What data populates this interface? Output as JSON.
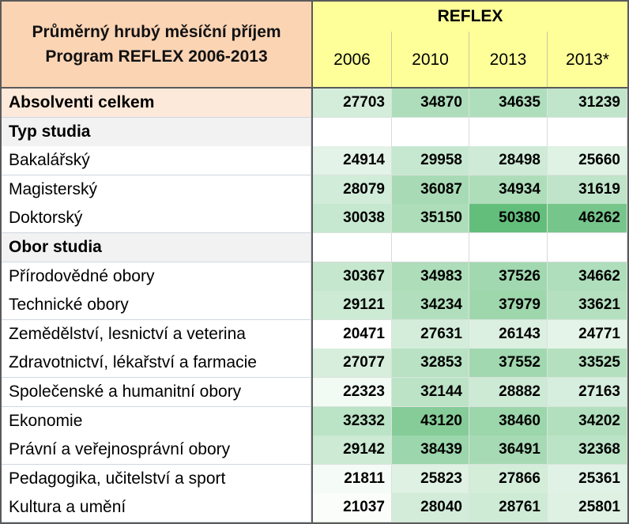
{
  "table": {
    "title_line1": "Průměrný hrubý měsíční příjem",
    "title_line2": "Program REFLEX 2006-2013",
    "group_header": "REFLEX",
    "years": [
      "2006",
      "2010",
      "2013",
      "2013*"
    ],
    "rows": [
      {
        "label": "Absolventi celkem",
        "bold": true,
        "highlight": true,
        "values": [
          27703,
          34870,
          34635,
          31239
        ]
      },
      {
        "label": "Typ studia",
        "bold": true,
        "section": true,
        "values": []
      },
      {
        "label": "Bakalářský",
        "values": [
          24914,
          29958,
          28498,
          25660
        ]
      },
      {
        "label": "Magisterský",
        "values": [
          28079,
          36087,
          34934,
          31619
        ]
      },
      {
        "label": "Doktorský",
        "values": [
          30038,
          35150,
          50380,
          46262
        ]
      },
      {
        "label": "Obor studia",
        "bold": true,
        "section": true,
        "values": []
      },
      {
        "label": "Přírodovědné obory",
        "values": [
          30367,
          34983,
          37526,
          34662
        ]
      },
      {
        "label": "Technické obory",
        "values": [
          29121,
          34234,
          37979,
          33621
        ]
      },
      {
        "label": "Zemědělství, lesnictví a veterina",
        "values": [
          20471,
          27631,
          26143,
          24771
        ]
      },
      {
        "label": "Zdravotnictví, lékařství a farmacie",
        "values": [
          27077,
          32853,
          37552,
          33525
        ]
      },
      {
        "label": "Společenské a humanitní obory",
        "values": [
          22323,
          32144,
          28882,
          27163
        ]
      },
      {
        "label": "Ekonomie",
        "values": [
          32332,
          43120,
          38460,
          34202
        ]
      },
      {
        "label": "Právní a veřejnosprávní obory",
        "values": [
          29142,
          38439,
          36491,
          32368
        ]
      },
      {
        "label": "Pedagogika, učitelství a sport",
        "values": [
          21811,
          25823,
          27866,
          25361
        ]
      },
      {
        "label": "Kultura a umění",
        "values": [
          21037,
          28040,
          28761,
          25801
        ]
      }
    ]
  },
  "colors": {
    "header_title_bg": "#fbd4b4",
    "header_year_bg": "#ffff99",
    "highlight_row_bg": "#fde9d9",
    "section_row_bg": "#f2f2f2",
    "heat_low": "#ffffff",
    "heat_high": "#63be7b"
  }
}
